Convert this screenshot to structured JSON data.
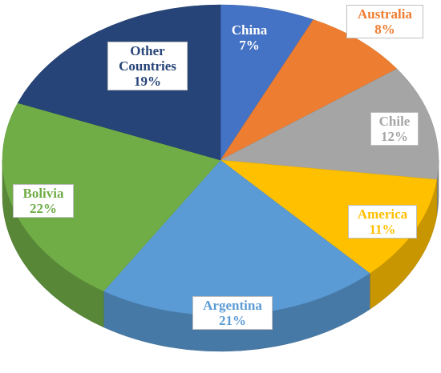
{
  "chart_data": {
    "type": "pie",
    "title": "",
    "slices": [
      {
        "name": "China",
        "value": 7,
        "label": "7%",
        "color": "#4472C4",
        "text_color": "#ffffff"
      },
      {
        "name": "Australia",
        "value": 8,
        "label": "8%",
        "color": "#ED7D31",
        "text_color": "#ED7D31"
      },
      {
        "name": "Chile",
        "value": 12,
        "label": "12%",
        "color": "#A5A5A5",
        "text_color": "#A5A5A5"
      },
      {
        "name": "America",
        "value": 11,
        "label": "11%",
        "color": "#FFC000",
        "text_color": "#FFC000"
      },
      {
        "name": "Argentina",
        "value": 21,
        "label": "21%",
        "color": "#5B9BD5",
        "text_color": "#5B9BD5"
      },
      {
        "name": "Bolivia",
        "value": 22,
        "label": "22%",
        "color": "#70AD47",
        "text_color": "#70AD47"
      },
      {
        "name": "Other Countries",
        "value": 19,
        "label": "19%",
        "color": "#264478",
        "text_color": "#264478"
      }
    ]
  }
}
